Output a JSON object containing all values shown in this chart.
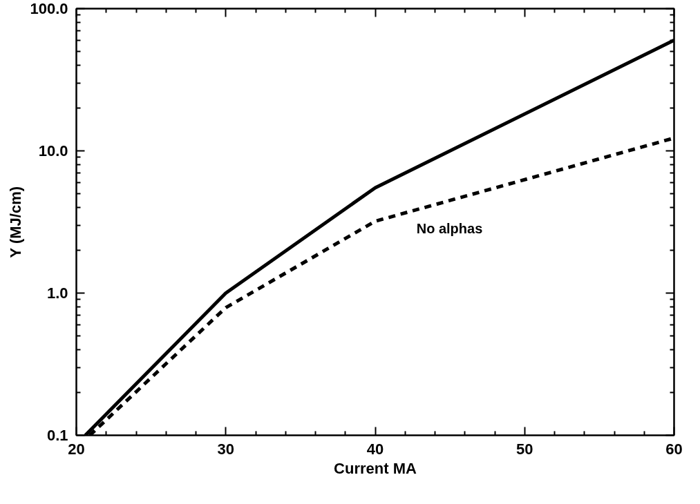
{
  "chart_data": {
    "type": "line",
    "xlabel": "Current MA",
    "ylabel": "Y (MJ/cm)",
    "log": "y",
    "xlim": [
      20,
      60
    ],
    "xticks": [
      20,
      30,
      40,
      50,
      60
    ],
    "ylim": [
      0.1,
      100
    ],
    "yticks": [
      {
        "value": 0.1,
        "label": "0.1"
      },
      {
        "value": 1,
        "label": "1.0"
      },
      {
        "value": 10,
        "label": "10.0"
      },
      {
        "value": 100,
        "label": "100.0"
      }
    ],
    "grid": false,
    "series": [
      {
        "color": "#000000",
        "line_style": "solid",
        "x": [
          20.6,
          30,
          40,
          60
        ],
        "values": [
          0.1,
          1.0,
          5.5,
          60
        ]
      },
      {
        "color": "#000000",
        "line_style": "dashed",
        "x": [
          20.9,
          30,
          40,
          60
        ],
        "values": [
          0.1,
          0.79,
          3.2,
          12.3
        ]
      }
    ],
    "annotations": [
      "No alphas"
    ]
  }
}
